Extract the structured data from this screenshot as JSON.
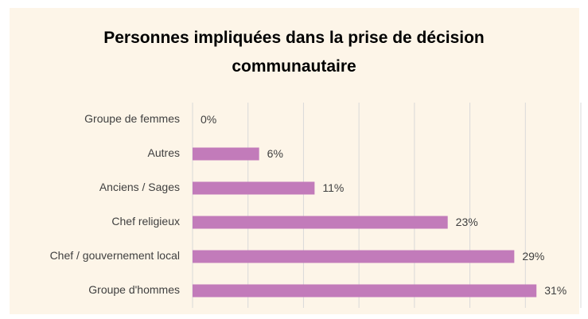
{
  "chart_data": {
    "type": "bar",
    "orientation": "horizontal",
    "title": "Personnes impliquées dans la prise de décision communautaire",
    "categories": [
      "Groupe de femmes",
      "Autres",
      "Anciens / Sages",
      "Chef religieux",
      "Chef / gouvernement local",
      "Groupe d'hommes"
    ],
    "values": [
      0,
      6,
      11,
      23,
      29,
      31
    ],
    "value_labels": [
      "0%",
      "6%",
      "11%",
      "23%",
      "29%",
      "31%"
    ],
    "color": "#c27bba",
    "xlim": [
      0,
      35
    ],
    "xticks": [
      0,
      5,
      10,
      15,
      20,
      25,
      30,
      35
    ],
    "grid": true
  }
}
